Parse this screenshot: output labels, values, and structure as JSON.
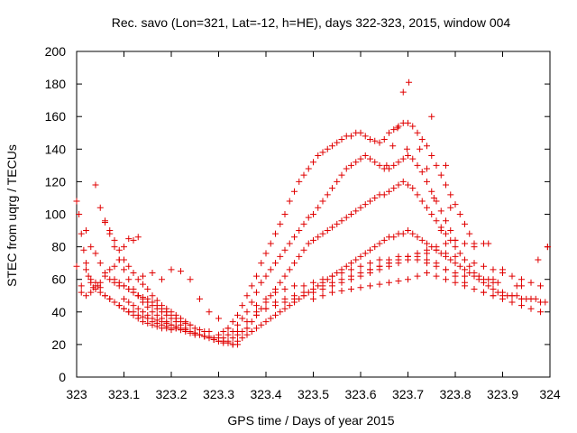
{
  "chart_data": {
    "type": "scatter",
    "title": "Rec. savo (Lon=321, Lat=-12, h=HE), days 322-323, 2015, window 004",
    "xlabel": "GPS time / Days of year 2015",
    "ylabel": "STEC from uqrg / TECUs",
    "xlim": [
      323,
      324
    ],
    "ylim": [
      0,
      200
    ],
    "xticks": [
      "323",
      "323.1",
      "323.2",
      "323.3",
      "323.4",
      "323.5",
      "323.6",
      "323.7",
      "323.8",
      "323.9",
      "324"
    ],
    "yticks": [
      "0",
      "20",
      "40",
      "60",
      "80",
      "100",
      "120",
      "140",
      "160",
      "180",
      "200"
    ],
    "grid": false,
    "marker": "+",
    "color": "#e00000",
    "series": [
      {
        "x": [
          323.0,
          323.005,
          323.01,
          323.015,
          323.02,
          323.025,
          323.03,
          323.035,
          323.04,
          323.045,
          323.05,
          323.06,
          323.07,
          323.08,
          323.09,
          323.1,
          323.11,
          323.12,
          323.13,
          323.0,
          323.01,
          323.02,
          323.03,
          323.04,
          323.05,
          323.06,
          323.07,
          323.08,
          323.09,
          323.1,
          323.11,
          323.12,
          323.13,
          323.14,
          323.15,
          323.16,
          323.17,
          323.18,
          323.19,
          323.2,
          323.01,
          323.02,
          323.03,
          323.04,
          323.05,
          323.06,
          323.07,
          323.08,
          323.09,
          323.1,
          323.11,
          323.12,
          323.13,
          323.14,
          323.15,
          323.16,
          323.17,
          323.18,
          323.19,
          323.2,
          323.21,
          323.22,
          323.02,
          323.03,
          323.04,
          323.05,
          323.06,
          323.07,
          323.08,
          323.09,
          323.1,
          323.11,
          323.12,
          323.13,
          323.14,
          323.15,
          323.16,
          323.17,
          323.18,
          323.19,
          323.2,
          323.21,
          323.22,
          323.23,
          323.24,
          323.04,
          323.05,
          323.06,
          323.07,
          323.08,
          323.09,
          323.1,
          323.11,
          323.12,
          323.13,
          323.14,
          323.15,
          323.16,
          323.17,
          323.18,
          323.19,
          323.2,
          323.21,
          323.22,
          323.23,
          323.24,
          323.25,
          323.26,
          323.27,
          323.28,
          323.06,
          323.07,
          323.08,
          323.09,
          323.1,
          323.11,
          323.12,
          323.13,
          323.14,
          323.15,
          323.16,
          323.17,
          323.18,
          323.19,
          323.2,
          323.21,
          323.22,
          323.23,
          323.24,
          323.25,
          323.26,
          323.27,
          323.28,
          323.29,
          323.3,
          323.08,
          323.09,
          323.1,
          323.11,
          323.12,
          323.13,
          323.14,
          323.15,
          323.16,
          323.17,
          323.18,
          323.19,
          323.2,
          323.21,
          323.22,
          323.23,
          323.24,
          323.25,
          323.26,
          323.27,
          323.28,
          323.29,
          323.3,
          323.31,
          323.32,
          323.1,
          323.11,
          323.12,
          323.13,
          323.14,
          323.15,
          323.16,
          323.17,
          323.18,
          323.19,
          323.2,
          323.21,
          323.22,
          323.23,
          323.24,
          323.25,
          323.26,
          323.27,
          323.28,
          323.29,
          323.3,
          323.31,
          323.32,
          323.33,
          323.34,
          323.14,
          323.16,
          323.18,
          323.2,
          323.22,
          323.24,
          323.26,
          323.28,
          323.3,
          323.32,
          323.34,
          323.36,
          323.3,
          323.31,
          323.32,
          323.33,
          323.34,
          323.35,
          323.36,
          323.37,
          323.38,
          323.39,
          323.4,
          323.41,
          323.42,
          323.43,
          323.44,
          323.45,
          323.46,
          323.47,
          323.48,
          323.49,
          323.5,
          323.51,
          323.52,
          323.53,
          323.54,
          323.55,
          323.56,
          323.57,
          323.58,
          323.59,
          323.6,
          323.61,
          323.62,
          323.63,
          323.64,
          323.65,
          323.66,
          323.67,
          323.68,
          323.69,
          323.7,
          323.71,
          323.72,
          323.73,
          323.74,
          323.75,
          323.76,
          323.77,
          323.78,
          323.79,
          323.8,
          323.81,
          323.82,
          323.83,
          323.84,
          323.31,
          323.32,
          323.33,
          323.34,
          323.35,
          323.36,
          323.37,
          323.38,
          323.39,
          323.4,
          323.41,
          323.42,
          323.43,
          323.44,
          323.45,
          323.46,
          323.47,
          323.48,
          323.49,
          323.5,
          323.51,
          323.52,
          323.53,
          323.54,
          323.55,
          323.56,
          323.57,
          323.58,
          323.59,
          323.6,
          323.61,
          323.62,
          323.63,
          323.64,
          323.65,
          323.66,
          323.67,
          323.68,
          323.69,
          323.7,
          323.71,
          323.72,
          323.73,
          323.74,
          323.75,
          323.76,
          323.77,
          323.78,
          323.79,
          323.8,
          323.32,
          323.33,
          323.34,
          323.35,
          323.36,
          323.37,
          323.38,
          323.39,
          323.4,
          323.41,
          323.42,
          323.43,
          323.44,
          323.45,
          323.46,
          323.47,
          323.48,
          323.49,
          323.5,
          323.51,
          323.52,
          323.53,
          323.54,
          323.55,
          323.56,
          323.57,
          323.58,
          323.59,
          323.6,
          323.61,
          323.62,
          323.63,
          323.64,
          323.65,
          323.66,
          323.67,
          323.68,
          323.69,
          323.7,
          323.71,
          323.72,
          323.73,
          323.74,
          323.75,
          323.76,
          323.77,
          323.78,
          323.79,
          323.8,
          323.81,
          323.82,
          323.83,
          323.84,
          323.85,
          323.86,
          323.87,
          323.88,
          323.89,
          323.33,
          323.34,
          323.35,
          323.36,
          323.37,
          323.38,
          323.39,
          323.4,
          323.41,
          323.42,
          323.43,
          323.44,
          323.45,
          323.46,
          323.47,
          323.48,
          323.49,
          323.5,
          323.51,
          323.52,
          323.53,
          323.54,
          323.55,
          323.56,
          323.57,
          323.58,
          323.59,
          323.6,
          323.61,
          323.62,
          323.63,
          323.64,
          323.65,
          323.66,
          323.67,
          323.68,
          323.69,
          323.7,
          323.71,
          323.72,
          323.73,
          323.74,
          323.75,
          323.76,
          323.77,
          323.78,
          323.79,
          323.8,
          323.81,
          323.82,
          323.83,
          323.84,
          323.85,
          323.86,
          323.87,
          323.88,
          323.89,
          323.9,
          323.91,
          323.92,
          323.93,
          323.94,
          323.95,
          323.96,
          323.97,
          323.98,
          323.99,
          323.36,
          323.38,
          323.4,
          323.42,
          323.44,
          323.46,
          323.48,
          323.5,
          323.52,
          323.54,
          323.56,
          323.58,
          323.6,
          323.62,
          323.64,
          323.66,
          323.68,
          323.7,
          323.72,
          323.74,
          323.76,
          323.78,
          323.8,
          323.82,
          323.84,
          323.86,
          323.88,
          323.9,
          323.92,
          323.94,
          323.96,
          323.98,
          323.5,
          323.52,
          323.54,
          323.56,
          323.58,
          323.6,
          323.62,
          323.64,
          323.66,
          323.68,
          323.7,
          323.72,
          323.74,
          323.76,
          323.78,
          323.8,
          323.82,
          323.84,
          323.86,
          323.88,
          323.9,
          323.92,
          323.94,
          323.96,
          323.98,
          323.38,
          323.4,
          323.42,
          323.44,
          323.46,
          323.48,
          323.5,
          323.52,
          323.54,
          323.56,
          323.58,
          323.6,
          323.62,
          323.64,
          323.66,
          323.68,
          323.7,
          323.72,
          323.74,
          323.76,
          323.78,
          323.8,
          323.82,
          323.84,
          323.86,
          323.88,
          323.9,
          323.92,
          323.94,
          323.96,
          323.98,
          323.995,
          323.6,
          323.62,
          323.64,
          323.66,
          323.68,
          323.7,
          323.72,
          323.74,
          323.76,
          323.78,
          323.8,
          323.82,
          323.84,
          323.38,
          323.4,
          323.42,
          323.44,
          323.46,
          323.48,
          323.5,
          323.52,
          323.54,
          323.56,
          323.58,
          323.6,
          323.62,
          323.64,
          323.66,
          323.68,
          323.7,
          323.72,
          323.74,
          323.76,
          323.78,
          323.8,
          323.82,
          323.655,
          323.668,
          323.678,
          323.69,
          323.698,
          323.702,
          323.725,
          323.74,
          323.75,
          323.755,
          323.77,
          323.78,
          323.79,
          323.86,
          323.87,
          323.88,
          323.9,
          323.93,
          323.94,
          323.975,
          323.995
        ],
        "y": [
          108,
          100,
          88,
          78,
          70,
          62,
          58,
          55,
          54,
          56,
          58,
          62,
          66,
          68,
          72,
          80,
          85,
          84,
          86,
          68,
          56,
          50,
          52,
          56,
          55,
          50,
          48,
          46,
          44,
          42,
          40,
          38,
          36,
          34,
          33,
          32,
          31,
          30,
          30,
          29,
          52,
          66,
          60,
          58,
          52,
          50,
          48,
          46,
          44,
          42,
          40,
          40,
          38,
          37,
          36,
          34,
          33,
          32,
          31,
          30,
          30,
          29,
          90,
          80,
          76,
          70,
          64,
          60,
          58,
          56,
          56,
          54,
          52,
          50,
          49,
          48,
          46,
          44,
          42,
          40,
          38,
          36,
          34,
          33,
          32,
          118,
          104,
          96,
          90,
          84,
          78,
          72,
          68,
          64,
          60,
          57,
          54,
          50,
          47,
          44,
          42,
          40,
          38,
          36,
          34,
          32,
          30,
          29,
          28,
          28,
          95,
          88,
          80,
          72,
          66,
          60,
          54,
          50,
          46,
          43,
          40,
          38,
          36,
          34,
          32,
          30,
          29,
          28,
          27,
          26,
          26,
          25,
          25,
          24,
          24,
          60,
          58,
          56,
          54,
          52,
          50,
          48,
          46,
          44,
          42,
          40,
          38,
          36,
          34,
          32,
          30,
          28,
          27,
          26,
          25,
          24,
          23,
          22,
          21,
          21,
          48,
          46,
          44,
          42,
          40,
          38,
          36,
          35,
          34,
          33,
          32,
          31,
          30,
          29,
          28,
          27,
          26,
          25,
          24,
          23,
          22,
          22,
          21,
          20,
          20,
          62,
          64,
          60,
          66,
          65,
          60,
          48,
          40,
          36,
          30,
          28,
          30,
          26,
          28,
          30,
          34,
          38,
          44,
          50,
          56,
          62,
          70,
          76,
          82,
          88,
          94,
          100,
          108,
          114,
          120,
          124,
          128,
          132,
          136,
          138,
          140,
          142,
          144,
          146,
          148,
          148,
          150,
          150,
          148,
          146,
          145,
          144,
          146,
          150,
          152,
          154,
          156,
          156,
          154,
          150,
          146,
          142,
          136,
          130,
          124,
          118,
          112,
          106,
          100,
          94,
          88,
          82,
          24,
          26,
          28,
          32,
          36,
          40,
          46,
          52,
          58,
          62,
          66,
          70,
          74,
          78,
          82,
          86,
          90,
          94,
          98,
          100,
          104,
          108,
          112,
          116,
          120,
          124,
          128,
          130,
          132,
          134,
          136,
          134,
          132,
          130,
          128,
          128,
          130,
          132,
          134,
          136,
          134,
          130,
          126,
          120,
          114,
          108,
          102,
          96,
          90,
          84,
          22,
          24,
          26,
          28,
          30,
          34,
          38,
          42,
          46,
          50,
          54,
          58,
          62,
          66,
          70,
          74,
          78,
          82,
          84,
          86,
          88,
          90,
          92,
          94,
          96,
          98,
          100,
          102,
          104,
          106,
          108,
          110,
          112,
          112,
          114,
          116,
          118,
          120,
          118,
          116,
          112,
          108,
          104,
          100,
          96,
          92,
          88,
          84,
          80,
          76,
          72,
          68,
          64,
          62,
          60,
          60,
          60,
          58,
          20,
          22,
          24,
          26,
          28,
          30,
          32,
          34,
          36,
          38,
          40,
          42,
          44,
          46,
          48,
          50,
          52,
          54,
          56,
          58,
          60,
          62,
          64,
          66,
          68,
          70,
          72,
          74,
          76,
          78,
          80,
          82,
          84,
          86,
          86,
          88,
          88,
          90,
          88,
          86,
          84,
          82,
          80,
          78,
          76,
          74,
          72,
          70,
          68,
          66,
          64,
          62,
          60,
          58,
          56,
          54,
          52,
          52,
          50,
          50,
          50,
          48,
          48,
          48,
          48,
          46,
          46,
          34,
          38,
          42,
          46,
          48,
          50,
          52,
          54,
          56,
          58,
          60,
          62,
          64,
          66,
          68,
          70,
          72,
          74,
          76,
          76,
          78,
          76,
          74,
          72,
          70,
          68,
          66,
          64,
          62,
          60,
          58,
          56,
          48,
          50,
          52,
          53,
          54,
          55,
          56,
          57,
          58,
          59,
          60,
          62,
          64,
          62,
          60,
          58,
          56,
          54,
          52,
          50,
          48,
          46,
          44,
          42,
          40,
          40,
          42,
          44,
          46,
          48,
          50,
          52,
          54,
          56,
          58,
          60,
          62,
          64,
          66,
          68,
          70,
          72,
          74,
          72,
          70,
          66,
          62,
          58,
          54,
          52,
          50,
          50,
          50,
          48,
          48,
          46,
          80,
          64,
          66,
          68,
          70,
          72,
          74,
          76,
          78,
          80,
          82,
          84,
          82,
          80,
          44,
          48,
          52,
          54,
          56,
          56,
          58,
          60,
          62,
          64,
          66,
          68,
          70,
          72,
          72,
          74,
          74,
          72,
          70,
          68,
          66,
          64,
          62,
          130,
          142,
          153,
          175,
          140,
          181,
          140,
          128,
          160,
          110,
          90,
          130,
          104,
          82,
          82,
          58,
          66,
          56,
          56,
          72,
          80
        ]
      }
    ]
  }
}
